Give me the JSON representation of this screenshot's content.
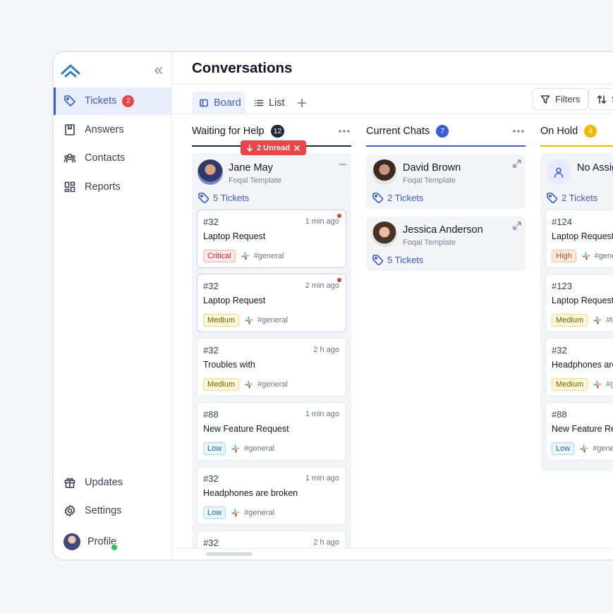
{
  "sidebar": {
    "nav": [
      {
        "label": "Tickets",
        "badge": 2
      },
      {
        "label": "Answers"
      },
      {
        "label": "Contacts"
      },
      {
        "label": "Reports"
      }
    ],
    "footer": [
      "Updates",
      "Settings",
      "Profile"
    ]
  },
  "header": {
    "title": "Conversations"
  },
  "tabs": [
    "Board",
    "List"
  ],
  "toolbar": [
    "Filters",
    "Sort"
  ],
  "columns": [
    {
      "title": "Waiting for Help",
      "count": 12,
      "color": "#1e293b",
      "unread": "2 Unread",
      "people": [
        {
          "name": "Jane May",
          "subtitle": "Foqal Template",
          "tickets": "5 Tickets"
        }
      ],
      "cards": [
        {
          "id": "#32",
          "time": "1 min ago",
          "title": "Laptop Request",
          "priority": "Critical",
          "channel": "#general",
          "unread": true
        },
        {
          "id": "#32",
          "time": "2 min ago",
          "title": "Laptop Request",
          "priority": "Medium",
          "channel": "#general",
          "unread": true
        },
        {
          "id": "#32",
          "time": "2 h ago",
          "title": "Troubles with",
          "priority": "Medium",
          "channel": "#general"
        },
        {
          "id": "#88",
          "time": "1 min ago",
          "title": "New Feature Request",
          "priority": "Low",
          "channel": "#general"
        },
        {
          "id": "#32",
          "time": "1 min ago",
          "title": "Headphones are broken",
          "priority": "Low",
          "channel": "#general"
        },
        {
          "id": "#32",
          "time": "2 h ago"
        }
      ]
    },
    {
      "title": "Current Chats",
      "count": 7,
      "color": "#3b5bdb",
      "people": [
        {
          "name": "David Brown",
          "subtitle": "Foqal Template",
          "tickets": "2 Tickets"
        },
        {
          "name": "Jessica Anderson",
          "subtitle": "Foqal Template",
          "tickets": "5 Tickets"
        }
      ],
      "cards": []
    },
    {
      "title": "On Hold",
      "count": 4,
      "color": "#f5b800",
      "people": [
        {
          "name": "No Assignee",
          "tickets": "2 Tickets",
          "assigned": false
        }
      ],
      "cards": [
        {
          "id": "#124",
          "title": "Laptop Request",
          "priority": "High",
          "channel": "#general"
        },
        {
          "id": "#123",
          "title": "Laptop Request",
          "priority": "Medium",
          "channel": "#te"
        },
        {
          "id": "#32",
          "title": "Headphones are broken",
          "priority": "Medium",
          "channel": "#general"
        },
        {
          "id": "#88",
          "title": "New Feature Request",
          "priority": "Low",
          "channel": "#general"
        }
      ]
    }
  ]
}
